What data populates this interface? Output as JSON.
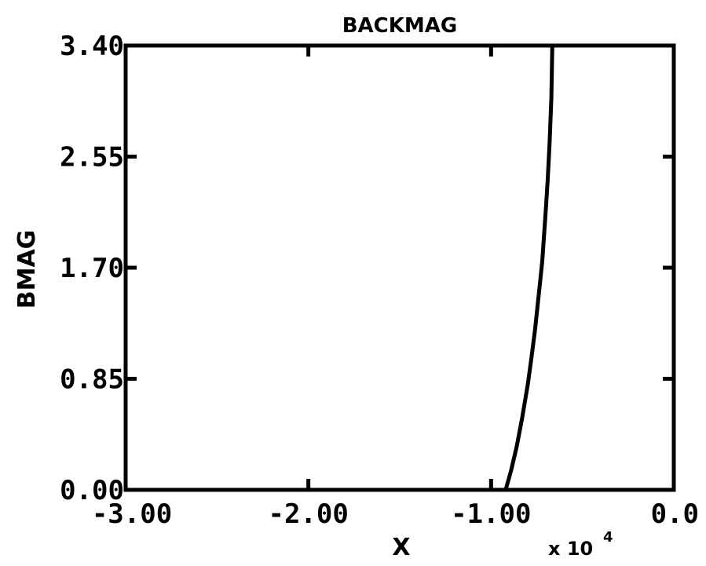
{
  "chart_data": {
    "type": "line",
    "title": "BACKMAG",
    "xlabel": "X",
    "ylabel": "BMAG",
    "x_scale_label": "x 10",
    "x_scale_exponent": "4",
    "x_multiplier": 10000,
    "xlim": [
      -3.0,
      0.0
    ],
    "ylim": [
      0.0,
      3.4
    ],
    "x_ticks": [
      -3.0,
      -2.0,
      -1.0,
      0.0
    ],
    "x_tick_labels": [
      "-3.00",
      "-2.00",
      "-1.00",
      "0.0"
    ],
    "y_ticks": [
      0.0,
      0.85,
      1.7,
      2.55,
      3.4
    ],
    "y_tick_labels": [
      "0.00",
      "0.85",
      "1.70",
      "2.55",
      "3.40"
    ],
    "grid": false,
    "series": [
      {
        "x": [
          -0.92,
          -0.89,
          -0.86,
          -0.83,
          -0.8,
          -0.78,
          -0.76,
          -0.74,
          -0.72,
          -0.71,
          -0.7,
          -0.69,
          -0.68,
          -0.67,
          -0.665
        ],
        "y": [
          0.0,
          0.15,
          0.33,
          0.55,
          0.8,
          1.0,
          1.22,
          1.48,
          1.75,
          1.95,
          2.15,
          2.38,
          2.65,
          3.0,
          3.4
        ]
      }
    ]
  }
}
